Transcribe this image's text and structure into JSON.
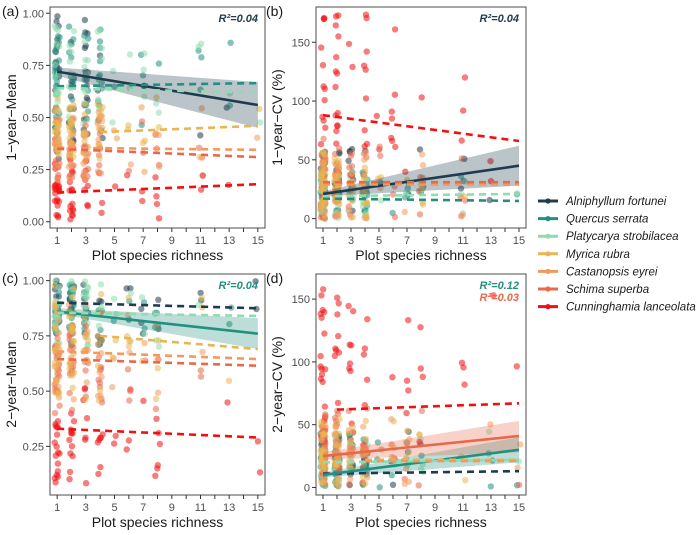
{
  "species": [
    {
      "name": "Alniphyllum fortunei",
      "color": "#1f3b4d"
    },
    {
      "name": "Quercus serrata",
      "color": "#21907f"
    },
    {
      "name": "Platycarya strobilacea",
      "color": "#8fdcb0"
    },
    {
      "name": "Myrica rubra",
      "color": "#e8b650"
    },
    {
      "name": "Castanopsis eyrei",
      "color": "#f29a5c"
    },
    {
      "name": "Schima superba",
      "color": "#e8684a"
    },
    {
      "name": "Cunninghamia lanceolata",
      "color": "#f01010"
    }
  ],
  "chart_data": [
    {
      "type": "scatter",
      "panel": "(a)",
      "xlabel": "Plot species richness",
      "ylabel": "1−year−Mean",
      "xlim": [
        0.5,
        15.5
      ],
      "ylim": [
        -0.03,
        1.03
      ],
      "xticks": [
        1,
        3,
        5,
        7,
        9,
        11,
        13,
        15
      ],
      "yticks": [
        0.0,
        0.25,
        0.5,
        0.75,
        1.0
      ],
      "ytick_labels": [
        "0.00",
        "0.25",
        "0.50",
        "0.75",
        "1.00"
      ],
      "annotations": [
        {
          "text": "R²=0.04",
          "species": 0
        }
      ],
      "fits": [
        {
          "species": 0,
          "style": "solid",
          "x": [
            1,
            15
          ],
          "y": [
            0.72,
            0.56
          ],
          "ci": [
            [
              0.7,
              0.74
            ],
            [
              0.45,
              0.67
            ]
          ]
        },
        {
          "species": 1,
          "style": "dashed",
          "x": [
            1,
            15
          ],
          "y": [
            0.65,
            0.665
          ]
        },
        {
          "species": 2,
          "style": "dashed",
          "x": [
            1,
            15
          ],
          "y": [
            0.64,
            0.62
          ]
        },
        {
          "species": 3,
          "style": "dashed",
          "x": [
            4,
            15
          ],
          "y": [
            0.43,
            0.46
          ]
        },
        {
          "species": 4,
          "style": "dashed",
          "x": [
            1,
            15
          ],
          "y": [
            0.355,
            0.345
          ]
        },
        {
          "species": 5,
          "style": "dashed",
          "x": [
            1,
            15
          ],
          "y": [
            0.35,
            0.31
          ]
        },
        {
          "species": 6,
          "style": "dashed",
          "x": [
            1,
            15
          ],
          "y": [
            0.14,
            0.18
          ]
        }
      ],
      "bands": [
        {
          "species": 0,
          "range": [
            0.3,
            1.0
          ]
        },
        {
          "species": 1,
          "range": [
            0.45,
            0.95
          ]
        },
        {
          "species": 2,
          "range": [
            0.45,
            0.95
          ]
        },
        {
          "species": 3,
          "range": [
            0.3,
            0.6
          ]
        },
        {
          "species": 4,
          "range": [
            0.2,
            0.55
          ]
        },
        {
          "species": 5,
          "range": [
            0.2,
            0.5
          ]
        },
        {
          "species": 6,
          "range": [
            0.0,
            0.3
          ]
        }
      ]
    },
    {
      "type": "scatter",
      "panel": "(b)",
      "xlabel": "Plot species richness",
      "ylabel": "1−year−CV (%)",
      "xlim": [
        0.5,
        15.5
      ],
      "ylim": [
        -8,
        180
      ],
      "xticks": [
        1,
        3,
        5,
        7,
        9,
        11,
        13,
        15
      ],
      "yticks": [
        0,
        50,
        100,
        150
      ],
      "ytick_labels": [
        "0",
        "50",
        "100",
        "150"
      ],
      "annotations": [
        {
          "text": "R²=0.04",
          "species": 0
        }
      ],
      "fits": [
        {
          "species": 0,
          "style": "solid",
          "x": [
            1,
            15
          ],
          "y": [
            21,
            45
          ],
          "ci": [
            [
              19,
              23
            ],
            [
              28,
              62
            ]
          ]
        },
        {
          "species": 1,
          "style": "dashed",
          "x": [
            1,
            15
          ],
          "y": [
            17,
            15
          ]
        },
        {
          "species": 2,
          "style": "dashed",
          "x": [
            1,
            15
          ],
          "y": [
            19,
            21
          ]
        },
        {
          "species": 3,
          "style": "dashed",
          "x": [
            1,
            15
          ],
          "y": [
            30,
            30
          ]
        },
        {
          "species": 4,
          "style": "dashed",
          "x": [
            1,
            15
          ],
          "y": [
            29,
            29
          ]
        },
        {
          "species": 5,
          "style": "dashed",
          "x": [
            1,
            15
          ],
          "y": [
            31,
            31
          ]
        },
        {
          "species": 6,
          "style": "dashed",
          "x": [
            1,
            15
          ],
          "y": [
            88,
            66
          ]
        }
      ],
      "bands": [
        {
          "species": 0,
          "range": [
            0,
            60
          ]
        },
        {
          "species": 1,
          "range": [
            0,
            40
          ]
        },
        {
          "species": 2,
          "range": [
            0,
            40
          ]
        },
        {
          "species": 3,
          "range": [
            0,
            60
          ]
        },
        {
          "species": 4,
          "range": [
            0,
            60
          ]
        },
        {
          "species": 5,
          "range": [
            0,
            70
          ]
        },
        {
          "species": 6,
          "range": [
            30,
            175
          ]
        }
      ]
    },
    {
      "type": "scatter",
      "panel": "(c)",
      "xlabel": "Plot species richness",
      "ylabel": "2−year−Mean",
      "xlim": [
        0.5,
        15.5
      ],
      "ylim": [
        0.03,
        1.03
      ],
      "xticks": [
        1,
        3,
        5,
        7,
        9,
        11,
        13,
        15
      ],
      "yticks": [
        0.25,
        0.5,
        0.75,
        1.0
      ],
      "ytick_labels": [
        "0.25",
        "0.50",
        "0.75",
        "1.00"
      ],
      "annotations": [
        {
          "text": "R²=0.04",
          "species": 1
        }
      ],
      "fits": [
        {
          "species": 0,
          "style": "dashed",
          "x": [
            1,
            15
          ],
          "y": [
            0.9,
            0.875
          ]
        },
        {
          "species": 1,
          "style": "solid",
          "x": [
            1,
            15
          ],
          "y": [
            0.86,
            0.76
          ],
          "ci": [
            [
              0.85,
              0.875
            ],
            [
              0.69,
              0.83
            ]
          ]
        },
        {
          "species": 2,
          "style": "dashed",
          "x": [
            1,
            15
          ],
          "y": [
            0.855,
            0.84
          ]
        },
        {
          "species": 3,
          "style": "dashed",
          "x": [
            4,
            15
          ],
          "y": [
            0.75,
            0.69
          ]
        },
        {
          "species": 4,
          "style": "dashed",
          "x": [
            1,
            15
          ],
          "y": [
            0.68,
            0.645
          ]
        },
        {
          "species": 5,
          "style": "dashed",
          "x": [
            1,
            15
          ],
          "y": [
            0.645,
            0.615
          ]
        },
        {
          "species": 6,
          "style": "dashed",
          "x": [
            1,
            15
          ],
          "y": [
            0.33,
            0.29
          ]
        }
      ],
      "bands": [
        {
          "species": 0,
          "range": [
            0.7,
            1.0
          ]
        },
        {
          "species": 1,
          "range": [
            0.7,
            1.0
          ]
        },
        {
          "species": 2,
          "range": [
            0.7,
            1.0
          ]
        },
        {
          "species": 3,
          "range": [
            0.45,
            1.0
          ]
        },
        {
          "species": 4,
          "range": [
            0.45,
            0.9
          ]
        },
        {
          "species": 5,
          "range": [
            0.4,
            0.8
          ]
        },
        {
          "species": 6,
          "range": [
            0.07,
            0.55
          ]
        }
      ]
    },
    {
      "type": "scatter",
      "panel": "(d)",
      "xlabel": "Plot species richness",
      "ylabel": "2−year−CV (%)",
      "xlim": [
        0.5,
        15.5
      ],
      "ylim": [
        -6,
        170
      ],
      "xticks": [
        1,
        3,
        5,
        7,
        9,
        11,
        13,
        15
      ],
      "yticks": [
        0,
        50,
        100,
        150
      ],
      "ytick_labels": [
        "0",
        "50",
        "100",
        "150"
      ],
      "annotations": [
        {
          "text": "R²=0.12",
          "species": 1
        },
        {
          "text": "R²=0.03",
          "species": 5
        }
      ],
      "fits": [
        {
          "species": 0,
          "style": "dashed",
          "x": [
            1,
            15
          ],
          "y": [
            11,
            13
          ]
        },
        {
          "species": 1,
          "style": "solid",
          "x": [
            1,
            15
          ],
          "y": [
            10,
            30
          ],
          "ci": [
            [
              8,
              12
            ],
            [
              20,
              40
            ]
          ]
        },
        {
          "species": 2,
          "style": "dashed",
          "x": [
            1,
            15
          ],
          "y": [
            20,
            22
          ]
        },
        {
          "species": 3,
          "style": "dashed",
          "x": [
            4,
            15
          ],
          "y": [
            22,
            22
          ]
        },
        {
          "species": 4,
          "style": "dashed",
          "x": [
            4,
            15
          ],
          "y": [
            21,
            21
          ]
        },
        {
          "species": 5,
          "style": "solid",
          "x": [
            1,
            15
          ],
          "y": [
            25,
            41
          ],
          "ci": [
            [
              22,
              28
            ],
            [
              28,
              53
            ]
          ]
        },
        {
          "species": 6,
          "style": "dashed",
          "x": [
            2,
            15
          ],
          "y": [
            62,
            67
          ]
        }
      ],
      "bands": [
        {
          "species": 0,
          "range": [
            0,
            45
          ]
        },
        {
          "species": 1,
          "range": [
            0,
            45
          ]
        },
        {
          "species": 2,
          "range": [
            0,
            45
          ]
        },
        {
          "species": 3,
          "range": [
            0,
            55
          ]
        },
        {
          "species": 4,
          "range": [
            0,
            55
          ]
        },
        {
          "species": 5,
          "range": [
            0,
            65
          ]
        },
        {
          "species": 6,
          "range": [
            30,
            160
          ]
        }
      ]
    }
  ]
}
